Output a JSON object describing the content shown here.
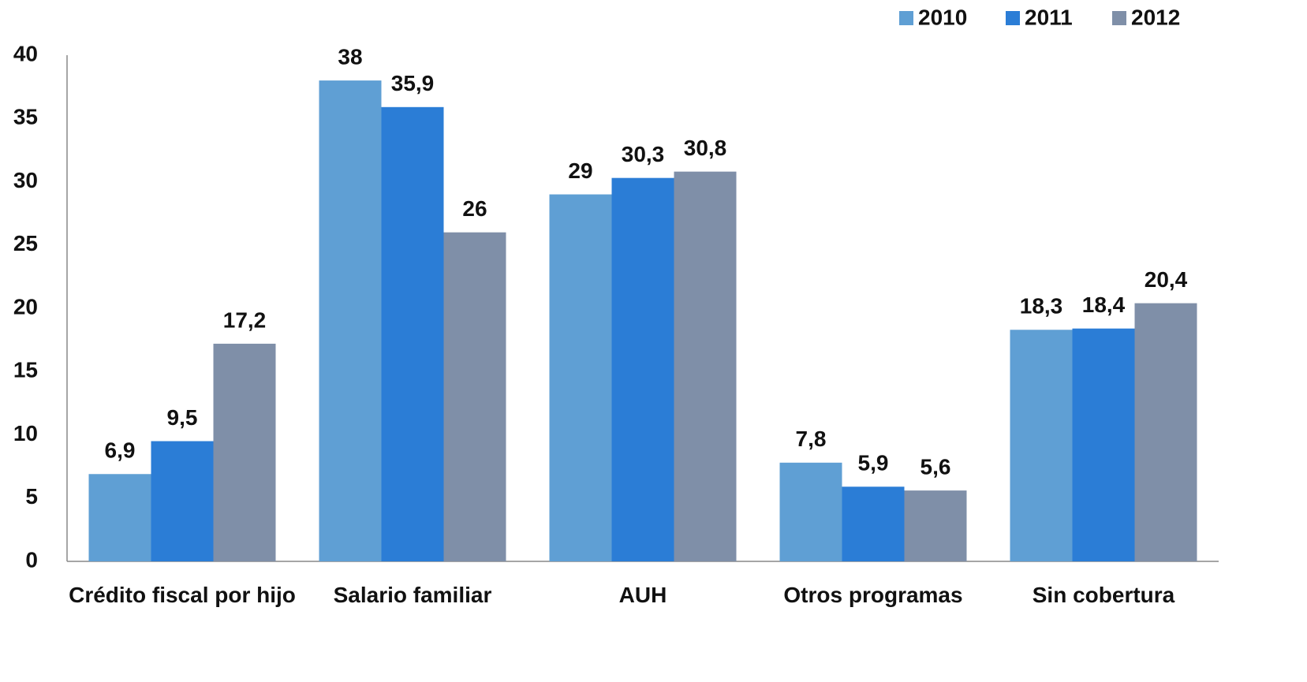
{
  "chart_data": {
    "type": "bar",
    "categories": [
      "Crédito fiscal por hijo",
      "Salario familiar",
      "AUH",
      "Otros programas",
      "Sin cobertura"
    ],
    "series": [
      {
        "name": "2010",
        "color": "#5f9fd4",
        "values": [
          6.9,
          38,
          29,
          7.8,
          18.3
        ],
        "value_labels": [
          "6,9",
          "38",
          "29",
          "7,8",
          "18,3"
        ]
      },
      {
        "name": "2011",
        "color": "#2b7dd6",
        "values": [
          9.5,
          35.9,
          30.3,
          5.9,
          18.4
        ],
        "value_labels": [
          "9,5",
          "35,9",
          "30,3",
          "5,9",
          "18,4"
        ]
      },
      {
        "name": "2012",
        "color": "#7f8fa8",
        "values": [
          17.2,
          26,
          30.8,
          5.6,
          20.4
        ],
        "value_labels": [
          "17,2",
          "26",
          "30,8",
          "5,6",
          "20,4"
        ]
      }
    ],
    "ylim": [
      0,
      40
    ],
    "yticks": [
      0,
      5,
      10,
      15,
      20,
      25,
      30,
      35,
      40
    ],
    "grid": false,
    "legend": "top-right"
  }
}
